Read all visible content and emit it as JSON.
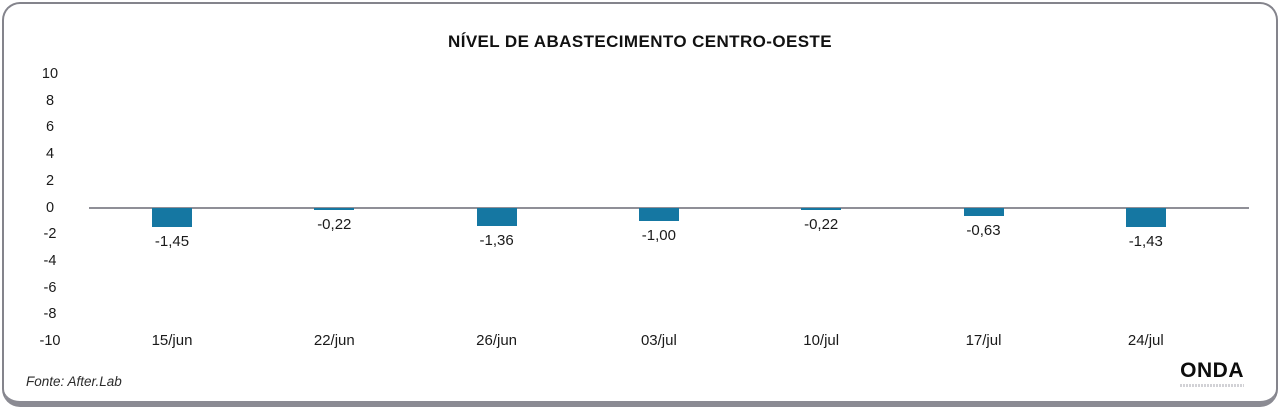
{
  "chart_data": {
    "type": "bar",
    "title": "NÍVEL DE ABASTECIMENTO CENTRO-OESTE",
    "categories": [
      "15/jun",
      "22/jun",
      "26/jun",
      "03/jul",
      "10/jul",
      "17/jul",
      "24/jul"
    ],
    "values": [
      -1.45,
      -0.22,
      -1.36,
      -1.0,
      -0.22,
      -0.63,
      -1.43
    ],
    "value_labels": [
      "-1,45",
      "-0,22",
      "-1,36",
      "-1,00",
      "-0,22",
      "-0,63",
      "-1,43"
    ],
    "xlabel": "",
    "ylabel": "",
    "ylim": [
      -10,
      10
    ],
    "yticks": [
      10,
      8,
      6,
      4,
      2,
      0,
      -2,
      -4,
      -6,
      -8,
      -10
    ],
    "grid": "zero-line-only",
    "legend": "none",
    "bar_color": "#1577a2",
    "zero_line_color": "#8f8f97",
    "label_color": "#1a1a1a"
  },
  "footer": {
    "source": "Fonte: After.Lab",
    "brand": "ONDA"
  }
}
